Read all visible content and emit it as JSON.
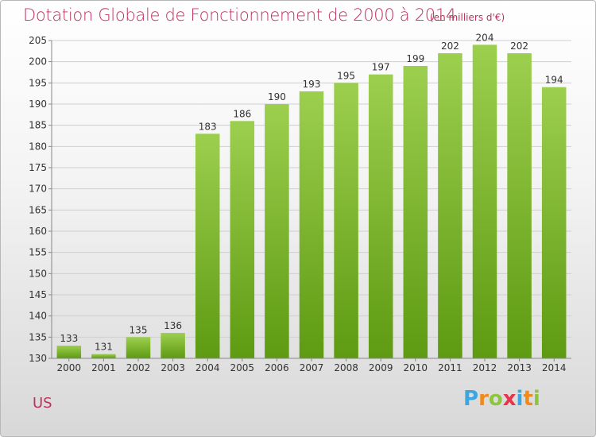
{
  "title": "Dotation Globale de Fonctionnement de 2000 à 2014",
  "subtitle": "(en milliers d'€)",
  "commune": "US",
  "logo": {
    "text": "Proxiti",
    "letters": [
      {
        "ch": "P",
        "color": "#3aa7e0"
      },
      {
        "ch": "r",
        "color": "#f08a1c"
      },
      {
        "ch": "o",
        "color": "#8cc63f"
      },
      {
        "ch": "x",
        "color": "#e8334a"
      },
      {
        "ch": "i",
        "color": "#3aa7e0"
      },
      {
        "ch": "t",
        "color": "#f08a1c"
      },
      {
        "ch": "i",
        "color": "#8cc63f"
      }
    ]
  },
  "colors": {
    "title": "#c0305c",
    "bar_top": "#9ccf4e",
    "bar_bottom": "#5e9a12",
    "grid": "#cfcfcf",
    "axis_text": "#333333"
  },
  "chart_data": {
    "type": "bar",
    "categories": [
      "2000",
      "2001",
      "2002",
      "2003",
      "2004",
      "2005",
      "2006",
      "2007",
      "2008",
      "2009",
      "2010",
      "2011",
      "2012",
      "2013",
      "2014"
    ],
    "values": [
      133,
      131,
      135,
      136,
      183,
      186,
      190,
      193,
      195,
      197,
      199,
      202,
      204,
      202,
      194
    ],
    "ylim": [
      130,
      205
    ],
    "yticks": [
      130,
      135,
      140,
      145,
      150,
      155,
      160,
      165,
      170,
      175,
      180,
      185,
      190,
      195,
      200,
      205
    ],
    "grid": true
  }
}
